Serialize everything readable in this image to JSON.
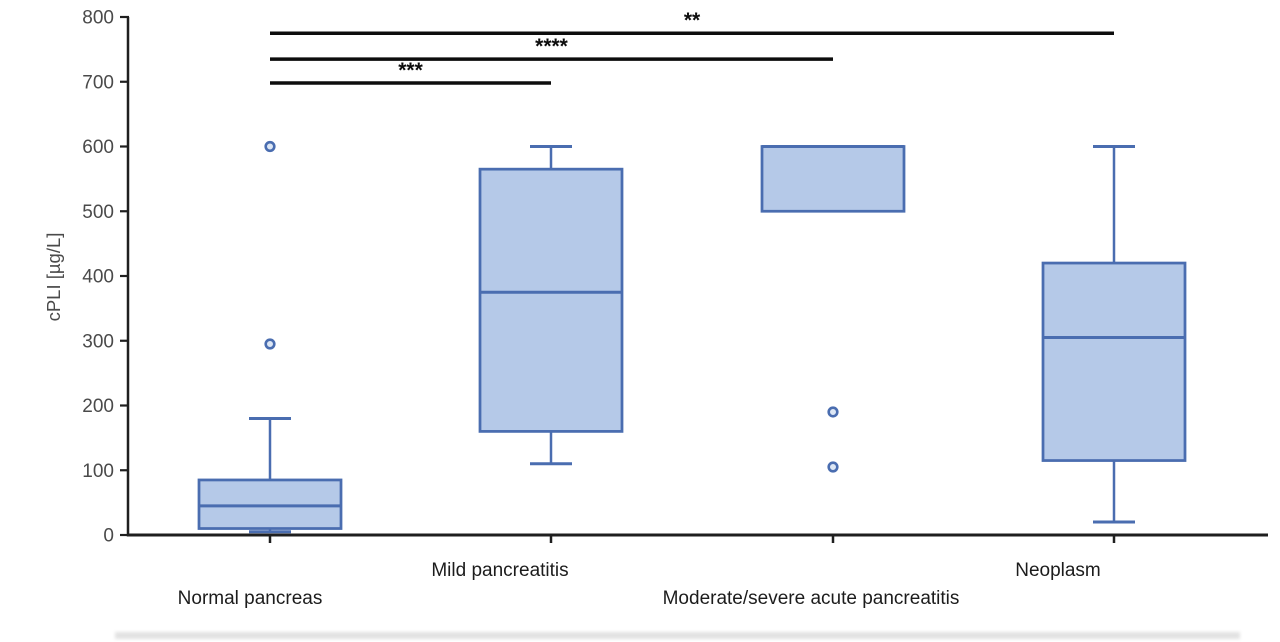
{
  "chart_data": {
    "type": "boxplot",
    "title": "",
    "ylabel": "cPLI [µg/L]",
    "xlabel": "",
    "ylim": [
      0,
      800
    ],
    "y_ticks": [
      0,
      100,
      200,
      300,
      400,
      500,
      600,
      700,
      800
    ],
    "grid": false,
    "legend_position": "none",
    "categories": [
      "Normal pancreas",
      "Mild pancreatitis",
      "Moderate/severe acute pancreatitis",
      "Neoplasm"
    ],
    "boxes": [
      {
        "category": "Normal pancreas",
        "whisker_low": 5,
        "q1": 10,
        "median": 45,
        "q3": 85,
        "whisker_high": 180,
        "outliers": [
          295,
          600
        ]
      },
      {
        "category": "Mild pancreatitis",
        "whisker_low": 110,
        "q1": 160,
        "median": 375,
        "q3": 565,
        "whisker_high": 600,
        "outliers": []
      },
      {
        "category": "Moderate/severe acute pancreatitis",
        "whisker_low": null,
        "q1": 500,
        "median": 600,
        "q3": 600,
        "whisker_high": null,
        "outliers": [
          190,
          105
        ]
      },
      {
        "category": "Neoplasm",
        "whisker_low": 20,
        "q1": 115,
        "median": 305,
        "q3": 420,
        "whisker_high": 600,
        "outliers": []
      }
    ],
    "significance_bars": [
      {
        "from": "Normal pancreas",
        "to": "Mild pancreatitis",
        "label": "***",
        "y_value": 698
      },
      {
        "from": "Normal pancreas",
        "to": "Moderate/severe acute pancreatitis",
        "label": "****",
        "y_value": 735
      },
      {
        "from": "Normal pancreas",
        "to": "Neoplasm",
        "label": "**",
        "y_value": 775
      }
    ],
    "colors": {
      "box_fill": "#b5c9e8",
      "box_stroke": "#4a6db0",
      "outlier_fill": "#dde7f5",
      "axis": "#1f1f1f",
      "tick_label": "#4a4a4a",
      "category_label": "#1c1c1c",
      "significance": "#0d0d0d",
      "background": "#ffffff"
    }
  }
}
